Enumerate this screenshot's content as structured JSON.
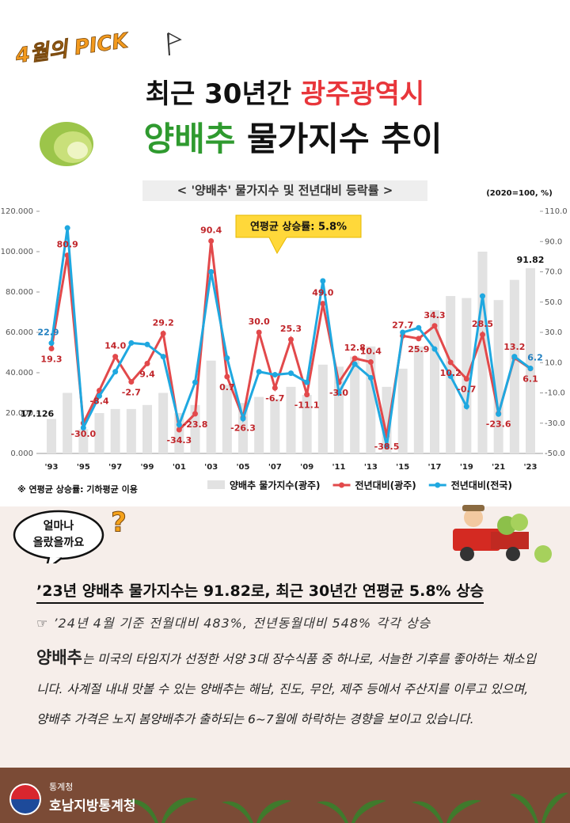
{
  "header": {
    "pick": "4월의 PICK",
    "title_a": "최근 30년간 ",
    "title_b": "광주광역시",
    "title_c": "양배추",
    "title_d": " 물가지수 추이"
  },
  "chart_data": {
    "type": "bar",
    "title": "< '양배추'  물가지수 및 전년대비 등락률 >",
    "unit_note": "(2020=100, %)",
    "annotation": "연평균 상승률: 5.8%",
    "footnote": "※ 연평균 상승률: 기하평균 이용",
    "categories": [
      "'93",
      null,
      "'95",
      null,
      "'97",
      null,
      "'99",
      null,
      "'01",
      null,
      "'03",
      null,
      "'05",
      null,
      "'07",
      null,
      "'09",
      null,
      "'11",
      null,
      "'13",
      null,
      "'15",
      null,
      "'17",
      null,
      "'19",
      null,
      "'21",
      null,
      "'23"
    ],
    "ylim": [
      0,
      120
    ],
    "yticks": [
      {
        "value": 0,
        "label": "0.000"
      },
      {
        "value": 20,
        "label": "20.000"
      },
      {
        "value": 40,
        "label": "40.000"
      },
      {
        "value": 60,
        "label": "60.000"
      },
      {
        "value": 80,
        "label": "80.000"
      },
      {
        "value": 100,
        "label": "100.000"
      },
      {
        "value": 120,
        "label": "120.000"
      }
    ],
    "y2lim": [
      -50,
      110
    ],
    "y2ticks": [
      {
        "value": -50,
        "label": "-50.0"
      },
      {
        "value": -30,
        "label": "-30.0"
      },
      {
        "value": -10,
        "label": "-10.0"
      },
      {
        "value": 10,
        "label": "10.0"
      },
      {
        "value": 30,
        "label": "30.0"
      },
      {
        "value": 50,
        "label": "50.0"
      },
      {
        "value": 70,
        "label": "70.0"
      },
      {
        "value": 90,
        "label": "90.0"
      },
      {
        "value": 110,
        "label": "110.0"
      }
    ],
    "grid": false,
    "series": [
      {
        "name": "양배추 물가지수(광주)",
        "type": "bar",
        "color": "#e2e2e2",
        "label_color": "#111111",
        "values": [
          17.126,
          30,
          12,
          20,
          22,
          22,
          24,
          30,
          20,
          24,
          46,
          34,
          25,
          28,
          27,
          33,
          29,
          44,
          43,
          48,
          53,
          33,
          42,
          53,
          71,
          78,
          77,
          100,
          76,
          86,
          91.82
        ],
        "value_labels": [
          "17.126",
          null,
          null,
          null,
          null,
          null,
          null,
          null,
          null,
          null,
          null,
          null,
          null,
          null,
          null,
          null,
          null,
          null,
          null,
          null,
          null,
          null,
          null,
          null,
          null,
          null,
          null,
          null,
          null,
          null,
          "91.82"
        ]
      },
      {
        "name": "전년대비(광주)",
        "type": "line",
        "axis": "y2",
        "color": "#e2494b",
        "label_color": "#c0252a",
        "values": [
          19.3,
          80.9,
          -30.0,
          -8.4,
          14.0,
          -2.7,
          9.4,
          29.2,
          -34.3,
          -23.8,
          90.4,
          0.7,
          -26.3,
          30.0,
          -6.7,
          25.3,
          -11.1,
          49.0,
          -3.0,
          12.8,
          10.4,
          -38.5,
          27.7,
          25.9,
          34.3,
          10.2,
          -0.7,
          28.5,
          -23.6,
          13.2,
          6.1
        ],
        "value_labels": [
          "19.3",
          "80.9",
          "-30.0",
          "-8.4",
          "14.0",
          "-2.7",
          "9.4",
          "29.2",
          "-34.3",
          "-23.8",
          "90.4",
          "0.7",
          "-26.3",
          "30.0",
          "-6.7",
          "25.3",
          "-11.1",
          "49.0",
          "-3.0",
          "12.8",
          "10.4",
          "-38.5",
          "27.7",
          "25.9",
          "34.3",
          "10.2",
          "-0.7",
          "28.5",
          "-23.6",
          "13.2",
          "6.1"
        ]
      },
      {
        "name": "전년대비(전국)",
        "type": "line",
        "axis": "y2",
        "color": "#1fa8e0",
        "label_color": "#1f7fc0",
        "values": [
          22.9,
          99,
          -33,
          -12,
          4,
          23,
          22,
          14,
          -31,
          -3,
          70,
          13,
          -27,
          4,
          2,
          3,
          -3,
          64,
          -10,
          9,
          0,
          -45,
          30,
          33,
          19,
          1,
          -19,
          54,
          -24,
          14,
          6.2
        ],
        "value_labels": [
          "22.9",
          null,
          null,
          null,
          null,
          null,
          null,
          null,
          null,
          null,
          null,
          null,
          null,
          null,
          null,
          null,
          null,
          null,
          null,
          null,
          null,
          null,
          null,
          null,
          null,
          null,
          null,
          null,
          null,
          null,
          "6.2"
        ]
      }
    ]
  },
  "bubble": {
    "line1": "얼마나",
    "line2": "올랐을까요",
    "mark": "?"
  },
  "body": {
    "headline": "’23년 양배추 물가지수는 91.82로, 최근 30년간 연평균 5.8% 상승",
    "bullet": "☞ ’24년 4월 기준 전월대비 483%, 전년동월대비 548% 각각 상승",
    "lead": "양배추",
    "text": "는 미국의 타임지가 선정한 서양 3대 장수식품 중 하나로, 서늘한 기후를 좋아하는 채소입니다. 사계절 내내 맛볼 수 있는 양배추는 해남, 진도, 무안, 제주 등에서 주산지를 이루고 있으며, 양배추 가격은 노지 봄양배추가 출하되는 6~7월에 하락하는 경향을 보이고 있습니다."
  },
  "footer": {
    "agency_small": "통계청",
    "agency": "호남지방통계청"
  }
}
